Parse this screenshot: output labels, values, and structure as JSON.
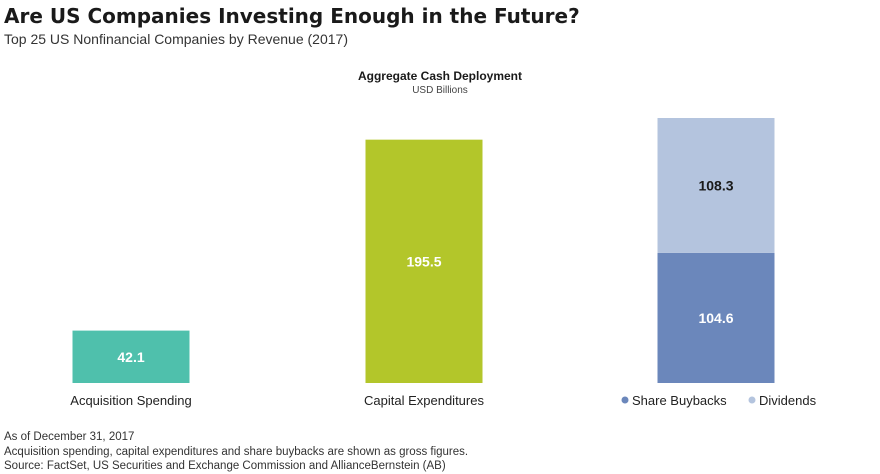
{
  "header": {
    "title": "Are US Companies Investing Enough in the Future?",
    "subtitle": "Top 25 US Nonfinancial Companies by Revenue (2017)"
  },
  "chart_data": {
    "type": "bar",
    "title": "Aggregate Cash Deployment",
    "subtitle": "USD Billions",
    "categories": [
      "Acquisition Spending",
      "Capital Expenditures",
      ""
    ],
    "bars": [
      {
        "category": "Acquisition Spending",
        "label": "Acquisition Spending",
        "segments": [
          {
            "value": 42.1,
            "label": "42.1",
            "color": "#4fc0ac"
          }
        ]
      },
      {
        "category": "Capital Expenditures",
        "label": "Capital Expenditures",
        "segments": [
          {
            "value": 195.5,
            "label": "195.5",
            "color": "#b3c62a"
          }
        ]
      },
      {
        "category": "",
        "label": "",
        "segments": [
          {
            "value": 104.6,
            "label": "104.6",
            "color": "#6b87bb",
            "name": "Share Buybacks"
          },
          {
            "value": 108.3,
            "label": "108.3",
            "color": "#b4c4de",
            "name": "Dividends"
          }
        ]
      }
    ],
    "legend": [
      {
        "name": "Share Buybacks",
        "color": "#6b87bb"
      },
      {
        "name": "Dividends",
        "color": "#b4c4de"
      }
    ],
    "legend_placement": "below third bar",
    "grid": false,
    "ylim": [
      0,
      212.9
    ]
  },
  "footnotes": [
    "As of December 31, 2017",
    "Acquisition spending, capital expenditures and share buybacks are shown as gross figures.",
    "Source: FactSet, US Securities and Exchange Commission and AllianceBernstein (AB)"
  ]
}
